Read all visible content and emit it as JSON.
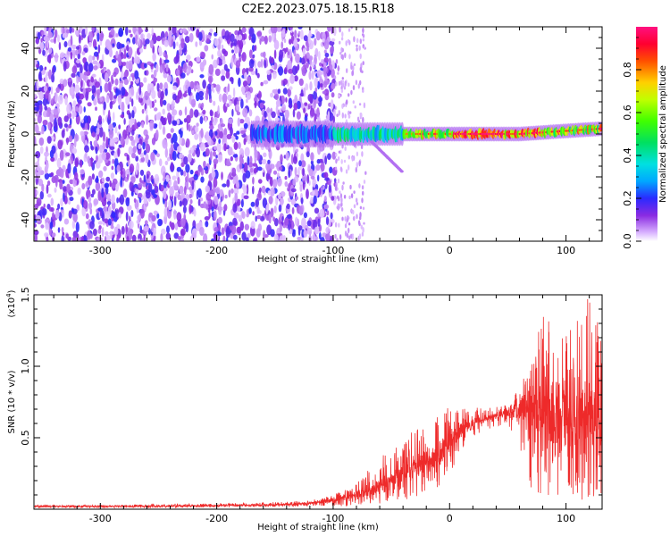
{
  "title": "C2E2.2023.075.18.15.R18",
  "colors": {
    "snr_line": "#ee2a2a",
    "axis": "#000000",
    "background": "#ffffff"
  },
  "chart_data": [
    {
      "type": "heatmap",
      "name": "spectrogram",
      "xlabel": "Height of straight line (km)",
      "ylabel": "Frequency (Hz)",
      "xlim": [
        -357,
        131
      ],
      "ylim": [
        -50,
        50
      ],
      "xticks": [
        -300,
        -200,
        -100,
        0,
        100
      ],
      "xtick_labels": [
        "-300",
        "-200",
        "-100",
        "0",
        "100"
      ],
      "yticks": [
        -40,
        -20,
        0,
        20,
        40
      ],
      "ytick_labels": [
        "-40",
        "-20",
        "0",
        "20",
        "40"
      ],
      "description_regions": [
        {
          "x_range": [
            -357,
            -100
          ],
          "y_range": [
            -50,
            50
          ],
          "amplitude": 0.2,
          "pattern": "noise"
        },
        {
          "x_range": [
            -100,
            131
          ],
          "y_center": 0,
          "y_halfwidth": 3,
          "amplitude": 0.6,
          "pattern": "narrow band"
        },
        {
          "x_range": [
            -20,
            80
          ],
          "y_center": 0,
          "y_halfwidth": 1,
          "amplitude": 0.9,
          "pattern": "peak band"
        }
      ],
      "colorbar": {
        "label": "Normalized spectral amplitude",
        "range": [
          0,
          1
        ],
        "ticks": [
          0.0,
          0.2,
          0.4,
          0.6,
          0.8
        ],
        "tick_labels": [
          "0.0",
          "0.2",
          "0.4",
          "0.6",
          "0.8"
        ]
      }
    },
    {
      "type": "line",
      "name": "snr",
      "xlabel": "Height of straight line (km)",
      "ylabel": "SNR (10 * v/v)",
      "y_multiplier_label": "(x10",
      "y_multiplier_exp": "4",
      "y_multiplier_close": ")",
      "xlim": [
        -357,
        131
      ],
      "ylim": [
        0,
        1.5
      ],
      "xticks": [
        -300,
        -200,
        -100,
        0,
        100
      ],
      "xtick_labels": [
        "-300",
        "-200",
        "-100",
        "0",
        "100"
      ],
      "yticks": [
        0.5,
        1.0,
        1.5
      ],
      "ytick_labels": [
        "0.5",
        "1.0",
        "1.5"
      ],
      "series": [
        {
          "name": "SNR",
          "x": [
            -357,
            -300,
            -250,
            -200,
            -150,
            -120,
            -100,
            -90,
            -80,
            -70,
            -60,
            -50,
            -40,
            -30,
            -20,
            -10,
            0,
            10,
            20,
            30,
            40,
            50,
            60,
            70,
            80,
            90,
            100,
            110,
            120,
            131
          ],
          "values": [
            0.02,
            0.02,
            0.02,
            0.025,
            0.03,
            0.04,
            0.06,
            0.08,
            0.1,
            0.13,
            0.16,
            0.2,
            0.24,
            0.28,
            0.33,
            0.4,
            0.48,
            0.55,
            0.6,
            0.63,
            0.65,
            0.67,
            0.7,
            0.72,
            0.7,
            0.65,
            0.62,
            0.6,
            0.68,
            0.55
          ],
          "envelope_max": [
            0.03,
            0.03,
            0.035,
            0.04,
            0.05,
            0.06,
            0.1,
            0.14,
            0.2,
            0.28,
            0.35,
            0.45,
            0.5,
            0.55,
            0.6,
            0.68,
            0.72,
            0.7,
            0.72,
            0.7,
            0.72,
            0.74,
            0.85,
            1.05,
            1.4,
            1.35,
            1.3,
            1.42,
            1.5,
            1.2
          ],
          "envelope_min": [
            0.01,
            0.01,
            0.01,
            0.012,
            0.015,
            0.02,
            0.02,
            0.02,
            0.02,
            0.03,
            0.04,
            0.05,
            0.06,
            0.08,
            0.1,
            0.15,
            0.25,
            0.4,
            0.5,
            0.55,
            0.58,
            0.6,
            0.4,
            0.15,
            0.08,
            0.06,
            0.05,
            0.05,
            0.06,
            0.1
          ]
        }
      ]
    }
  ]
}
